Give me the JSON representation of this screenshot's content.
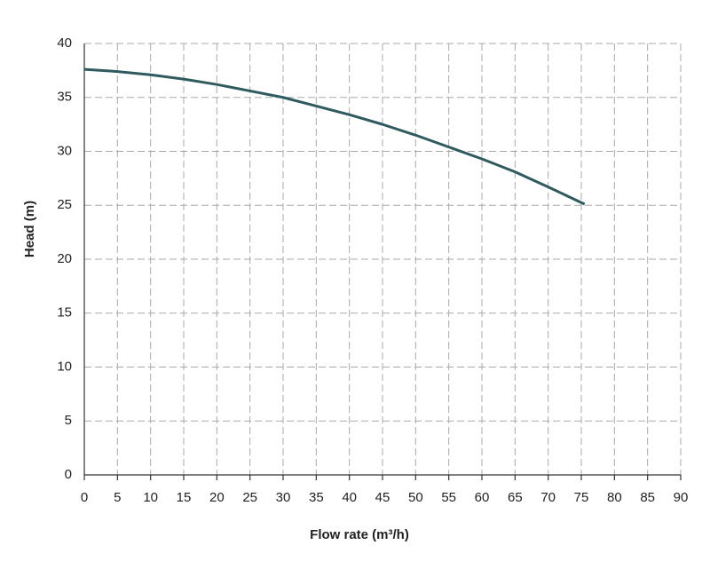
{
  "chart_data": {
    "type": "line",
    "x_label": "Flow rate (m³/h)",
    "y_label": "Head (m)",
    "x": [
      0,
      5,
      10,
      15,
      20,
      25,
      30,
      35,
      40,
      45,
      50,
      55,
      60,
      65,
      70,
      75.5
    ],
    "series": [
      {
        "name": "Head",
        "color": "#2f5a5f",
        "values": [
          37.6,
          37.4,
          37.1,
          36.7,
          36.2,
          35.6,
          35.0,
          34.2,
          33.4,
          32.5,
          31.5,
          30.4,
          29.3,
          28.1,
          26.7,
          25.1
        ]
      }
    ],
    "xlim": [
      0,
      90
    ],
    "xticks": [
      0,
      5,
      10,
      15,
      20,
      25,
      30,
      35,
      40,
      45,
      50,
      55,
      60,
      65,
      70,
      75,
      80,
      85,
      90
    ],
    "ylim": [
      0,
      40
    ],
    "yticks": [
      0,
      5,
      10,
      15,
      20,
      25,
      30,
      35,
      40
    ],
    "grid": true
  }
}
